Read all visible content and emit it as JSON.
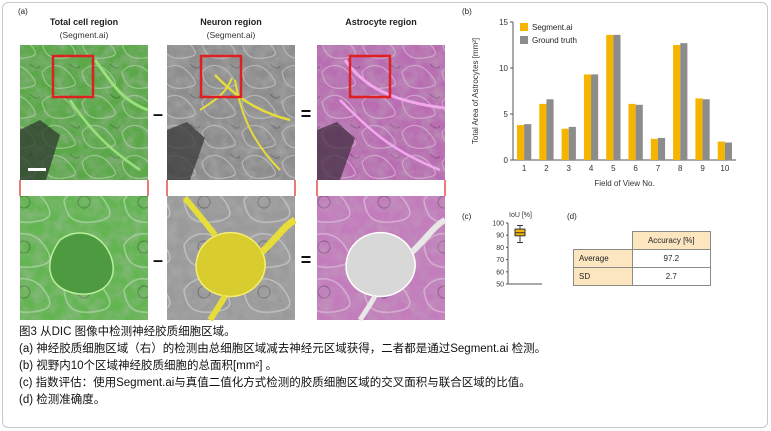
{
  "panel_a": {
    "label": "(a)",
    "columns": [
      {
        "title": "Total cell region",
        "subtitle": "(Segment.ai)"
      },
      {
        "title": "Neuron region",
        "subtitle": "(Segment.ai)"
      },
      {
        "title": "Astrocyte region",
        "subtitle": ""
      }
    ],
    "operators": [
      "–",
      "=",
      "–",
      "="
    ],
    "colors": {
      "green": "#5bbf3a",
      "yellow": "#e6dc3a",
      "magenta": "#d94fd0",
      "box": "#e02020"
    }
  },
  "panel_b": {
    "label": "(b)",
    "chart_data": {
      "type": "bar",
      "categories": [
        "1",
        "2",
        "3",
        "4",
        "5",
        "6",
        "7",
        "8",
        "9",
        "10"
      ],
      "series": [
        {
          "name": "Segment.ai",
          "color": "#f5b400",
          "values": [
            3.8,
            6.1,
            3.4,
            9.3,
            13.6,
            6.1,
            2.3,
            12.5,
            6.7,
            2.0
          ]
        },
        {
          "name": "Ground truth",
          "color": "#8c8c8c",
          "values": [
            3.9,
            6.6,
            3.6,
            9.3,
            13.6,
            6.0,
            2.4,
            12.7,
            6.6,
            1.9
          ]
        }
      ],
      "xlabel": "Field of View No.",
      "ylabel": "Total Area of Astrocytes [mm²]",
      "ylim": [
        0,
        15
      ],
      "yticks": [
        "0",
        "5",
        "10",
        "15"
      ],
      "legend_position": "top-left"
    }
  },
  "panel_c": {
    "label": "(c)",
    "chart_data": {
      "type": "box",
      "ylabel": "IoU [%]",
      "ylim": [
        50,
        100
      ],
      "yticks": [
        "50",
        "60",
        "70",
        "80",
        "90",
        "100"
      ],
      "box": {
        "min": 84,
        "q1": 89.5,
        "median": 92,
        "q3": 95,
        "max": 98
      },
      "color": "#f5b400"
    }
  },
  "panel_d": {
    "label": "(d)",
    "table": {
      "header": "Accuracy [%]",
      "rows": [
        {
          "label": "Average",
          "value": "97.2"
        },
        {
          "label": "SD",
          "value": "2.7"
        }
      ]
    }
  },
  "caption": {
    "lines": [
      "图3 从DIC 图像中检测神经胶质细胞区域。",
      "(a) 神经胶质细胞区域（右）的检测由总细胞区域减去神经元区域获得，二者都是通过Segment.ai 检测。",
      "(b) 视野内10个区域神经胶质细胞的总面积[mm²] 。",
      "(c)   指数评估：使用Segment.ai与真值二值化方式检测的胶质细胞区域的交叉面积与联合区域的比值。",
      "(d)  检测准确度。"
    ]
  }
}
